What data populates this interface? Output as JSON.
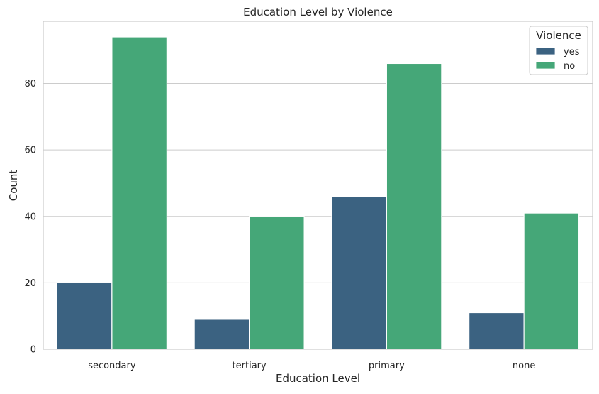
{
  "chart_data": {
    "type": "bar",
    "title": "Education Level by Violence",
    "xlabel": "Education Level",
    "ylabel": "Count",
    "categories": [
      "secondary",
      "tertiary",
      "primary",
      "none"
    ],
    "series": [
      {
        "name": "yes",
        "values": [
          20,
          9,
          46,
          11
        ],
        "color": "#3b6281"
      },
      {
        "name": "no",
        "values": [
          94,
          40,
          86,
          41
        ],
        "color": "#45a778"
      }
    ],
    "ylim": [
      0,
      98.7
    ],
    "yticks": [
      0,
      20,
      40,
      60,
      80
    ],
    "grid": true,
    "legend": {
      "title": "Violence",
      "position": "top-right"
    }
  }
}
